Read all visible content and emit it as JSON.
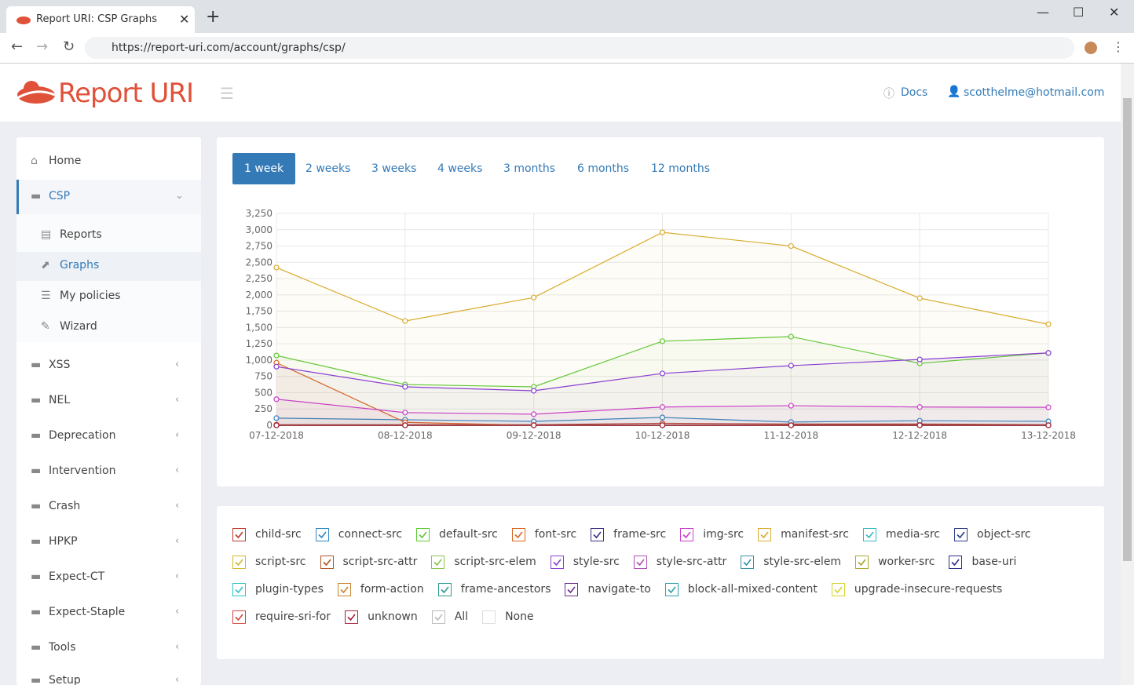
{
  "browser": {
    "tab_title": "Report URI: CSP Graphs",
    "url": "https://report-uri.com/account/graphs/csp/"
  },
  "header": {
    "logo": "Report URI",
    "docs": "Docs",
    "user": "scotthelme@hotmail.com"
  },
  "sidebar": [
    "Home",
    "CSP",
    "Reports",
    "Graphs",
    "My policies",
    "Wizard",
    "XSS",
    "NEL",
    "Deprecation",
    "Intervention",
    "Crash",
    "HPKP",
    "Expect-CT",
    "Expect-Staple",
    "Tools",
    "Setup"
  ],
  "ranges": [
    "1 week",
    "2 weeks",
    "3 weeks",
    "4 weeks",
    "3 months",
    "6 months",
    "12 months"
  ],
  "chart_data": {
    "type": "line",
    "x": [
      "07-12-2018",
      "08-12-2018",
      "09-12-2018",
      "10-12-2018",
      "11-12-2018",
      "12-12-2018",
      "13-12-2018"
    ],
    "ylim": [
      0,
      3250
    ],
    "yticks": [
      0,
      250,
      500,
      750,
      {
        "value": 1000,
        "label": "1,000"
      },
      {
        "value": 1250,
        "label": "1,250"
      },
      {
        "value": 1500,
        "label": "1,500"
      },
      {
        "value": 1750,
        "label": "1,750"
      },
      {
        "value": 2000,
        "label": "2,000"
      },
      {
        "value": 2250,
        "label": "2,250"
      },
      {
        "value": 2500,
        "label": "2,500"
      },
      {
        "value": 2750,
        "label": "2,750"
      },
      {
        "value": 3000,
        "label": "3,000"
      },
      {
        "value": 3250,
        "label": "3,250"
      }
    ],
    "grid": true,
    "series": [
      {
        "name": "child-src",
        "color": "#c0392b",
        "values": [
          10,
          10,
          10,
          30,
          20,
          20,
          10
        ]
      },
      {
        "name": "connect-src",
        "color": "#2f86c3",
        "values": [
          110,
          85,
          60,
          120,
          50,
          70,
          60
        ]
      },
      {
        "name": "default-src",
        "color": "#5cc936",
        "values": [
          1070,
          625,
          590,
          1290,
          1360,
          950,
          1110
        ]
      },
      {
        "name": "font-src",
        "color": "#d9661f",
        "values": [
          960,
          45,
          0,
          0,
          0,
          0,
          0
        ]
      },
      {
        "name": "frame-src",
        "color": "#3a2d85",
        "values": [
          0,
          0,
          0,
          0,
          0,
          0,
          0
        ]
      },
      {
        "name": "img-src",
        "color": "#cc3fcc",
        "values": [
          400,
          195,
          170,
          280,
          300,
          280,
          275
        ]
      },
      {
        "name": "manifest-src",
        "color": "#d9ac2e",
        "values": [
          2420,
          1600,
          1960,
          2960,
          2750,
          1950,
          1550
        ]
      },
      {
        "name": "media-src",
        "color": "#3bb8c4",
        "values": [
          0,
          0,
          0,
          0,
          0,
          0,
          0
        ]
      },
      {
        "name": "object-src",
        "color": "#2c3e8a",
        "values": [
          0,
          0,
          0,
          0,
          0,
          0,
          0
        ]
      },
      {
        "name": "script-src",
        "color": "#d4b82c",
        "values": [
          0,
          0,
          0,
          0,
          0,
          0,
          0
        ]
      },
      {
        "name": "script-src-attr",
        "color": "#b5532a",
        "values": [
          0,
          0,
          0,
          0,
          0,
          0,
          0
        ]
      },
      {
        "name": "script-src-elem",
        "color": "#8bc34a",
        "values": [
          0,
          0,
          0,
          0,
          0,
          0,
          0
        ]
      },
      {
        "name": "style-src",
        "color": "#8a3fd1",
        "values": [
          900,
          590,
          530,
          795,
          915,
          1010,
          1110
        ]
      },
      {
        "name": "style-src-attr",
        "color": "#b14fb1",
        "values": [
          0,
          0,
          0,
          0,
          0,
          0,
          0
        ]
      },
      {
        "name": "style-src-elem",
        "color": "#3a8fa8",
        "values": [
          0,
          0,
          0,
          0,
          0,
          0,
          0
        ]
      },
      {
        "name": "worker-src",
        "color": "#a8a82c",
        "values": [
          0,
          0,
          0,
          0,
          0,
          0,
          0
        ]
      },
      {
        "name": "base-uri",
        "color": "#2c2c8a",
        "values": [
          0,
          0,
          0,
          0,
          0,
          0,
          0
        ]
      },
      {
        "name": "plugin-types",
        "color": "#2fc4c4",
        "values": [
          0,
          0,
          0,
          0,
          0,
          0,
          0
        ]
      },
      {
        "name": "form-action",
        "color": "#c8842c",
        "values": [
          0,
          0,
          0,
          0,
          0,
          0,
          0
        ]
      },
      {
        "name": "frame-ancestors",
        "color": "#2e9b8f",
        "values": [
          0,
          0,
          0,
          0,
          0,
          0,
          0
        ]
      },
      {
        "name": "navigate-to",
        "color": "#6a2c8a",
        "values": [
          0,
          0,
          0,
          0,
          0,
          0,
          0
        ]
      },
      {
        "name": "block-all-mixed-content",
        "color": "#2f9faf",
        "values": [
          0,
          0,
          0,
          0,
          0,
          0,
          0
        ]
      },
      {
        "name": "upgrade-insecure-requests",
        "color": "#d4d42c",
        "values": [
          0,
          0,
          0,
          0,
          0,
          0,
          0
        ]
      },
      {
        "name": "require-sri-for",
        "color": "#d4443c",
        "values": [
          0,
          0,
          0,
          0,
          0,
          0,
          0
        ]
      },
      {
        "name": "unknown",
        "color": "#a8203a",
        "values": [
          0,
          0,
          0,
          0,
          0,
          0,
          0
        ]
      }
    ]
  },
  "filters": {
    "all": "All",
    "none": "None"
  }
}
